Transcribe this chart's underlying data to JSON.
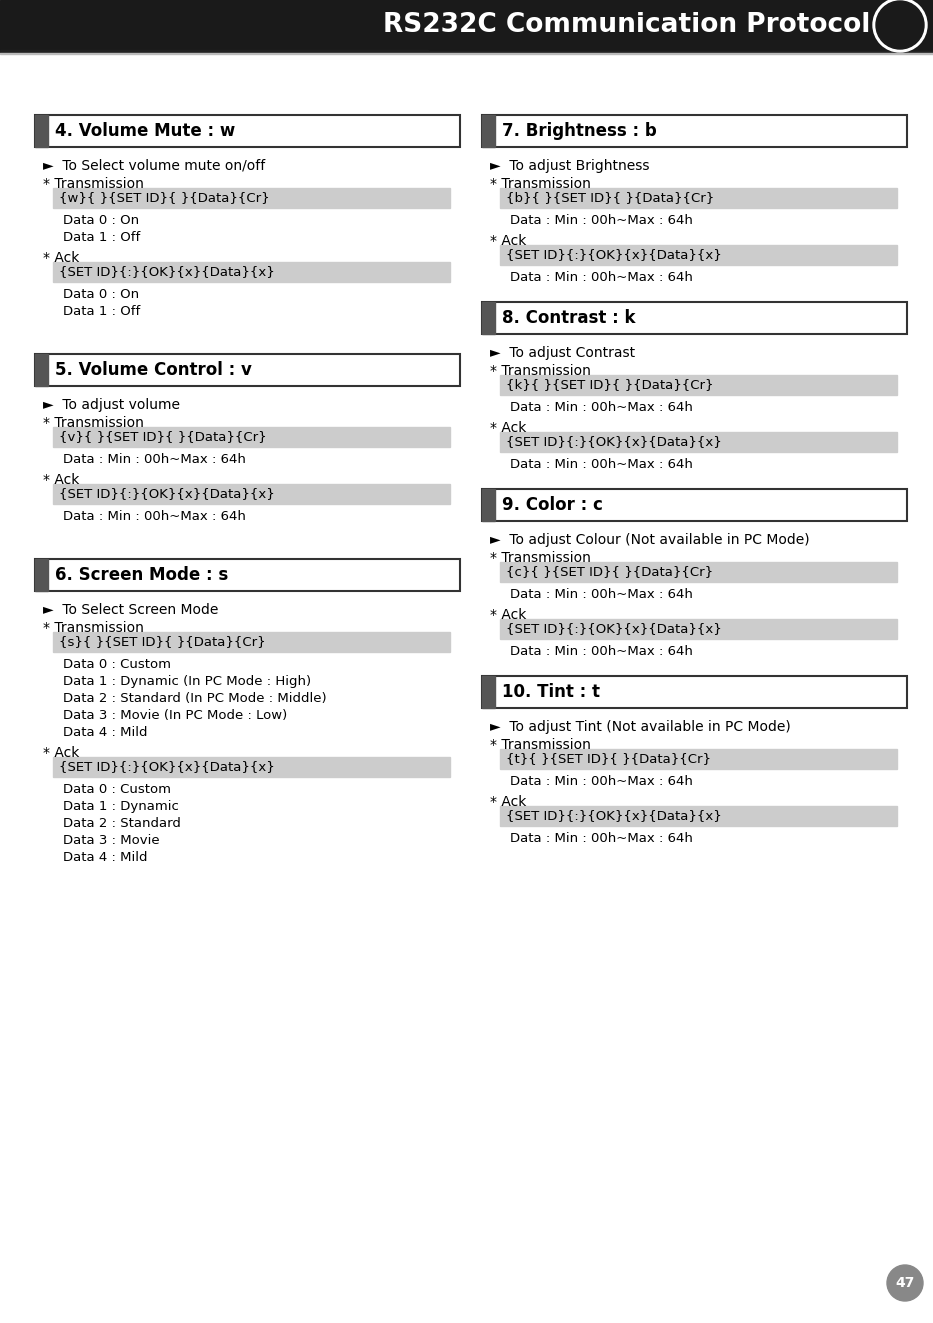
{
  "title": "RS232C Communication Protocol",
  "page_num": "47",
  "bg_color": "#ffffff",
  "header_bg": "#1a1a1a",
  "header_text_color": "#ffffff",
  "section_marker_color": "#555555",
  "code_bg": "#cccccc",
  "border_color": "#333333",
  "sections_left": [
    {
      "title": "4. Volume Mute : w",
      "description": "►  To Select volume mute on/off",
      "transmission_code": "{w}{ }{SET ID}{ }{Data}{Cr}",
      "transmission_data": [
        "Data 0 : On",
        "Data 1 : Off"
      ],
      "ack_code": "{SET ID}{:}{OK}{x}{Data}{x}",
      "ack_data": [
        "Data 0 : On",
        "Data 1 : Off"
      ]
    },
    {
      "title": "5. Volume Control : v",
      "description": "►  To adjust volume",
      "transmission_code": "{v}{ }{SET ID}{ }{Data}{Cr}",
      "transmission_data": [
        "Data : Min : 00h~Max : 64h"
      ],
      "ack_code": "{SET ID}{:}{OK}{x}{Data}{x}",
      "ack_data": [
        "Data : Min : 00h~Max : 64h"
      ]
    },
    {
      "title": "6. Screen Mode : s",
      "description": "►  To Select Screen Mode",
      "transmission_code": "{s}{ }{SET ID}{ }{Data}{Cr}",
      "transmission_data": [
        "Data 0 : Custom",
        "Data 1 : Dynamic (In PC Mode : High)",
        "Data 2 : Standard (In PC Mode : Middle)",
        "Data 3 : Movie (In PC Mode : Low)",
        "Data 4 : Mild"
      ],
      "ack_code": "{SET ID}{:}{OK}{x}{Data}{x}",
      "ack_data": [
        "Data 0 : Custom",
        "Data 1 : Dynamic",
        "Data 2 : Standard",
        "Data 3 : Movie",
        "Data 4 : Mild"
      ]
    }
  ],
  "sections_right": [
    {
      "title": "7. Brightness : b",
      "description": "►  To adjust Brightness",
      "transmission_code": "{b}{ }{SET ID}{ }{Data}{Cr}",
      "transmission_data": [
        "Data : Min : 00h~Max : 64h"
      ],
      "ack_code": "{SET ID}{:}{OK}{x}{Data}{x}",
      "ack_data": [
        "Data : Min : 00h~Max : 64h"
      ]
    },
    {
      "title": "8. Contrast : k",
      "description": "►  To adjust Contrast",
      "transmission_code": "{k}{ }{SET ID}{ }{Data}{Cr}",
      "transmission_data": [
        "Data : Min : 00h~Max : 64h"
      ],
      "ack_code": "{SET ID}{:}{OK}{x}{Data}{x}",
      "ack_data": [
        "Data : Min : 00h~Max : 64h"
      ]
    },
    {
      "title": "9. Color : c",
      "description": "►  To adjust Colour (Not available in PC Mode)",
      "transmission_code": "{c}{ }{SET ID}{ }{Data}{Cr}",
      "transmission_data": [
        "Data : Min : 00h~Max : 64h"
      ],
      "ack_code": "{SET ID}{:}{OK}{x}{Data}{x}",
      "ack_data": [
        "Data : Min : 00h~Max : 64h"
      ]
    },
    {
      "title": "10. Tint : t",
      "description": "►  To adjust Tint (Not available in PC Mode)",
      "transmission_code": "{t}{ }{SET ID}{ }{Data}{Cr}",
      "transmission_data": [
        "Data : Min : 00h~Max : 64h"
      ],
      "ack_code": "{SET ID}{:}{OK}{x}{Data}{x}",
      "ack_data": [
        "Data : Min : 00h~Max : 64h"
      ]
    }
  ]
}
